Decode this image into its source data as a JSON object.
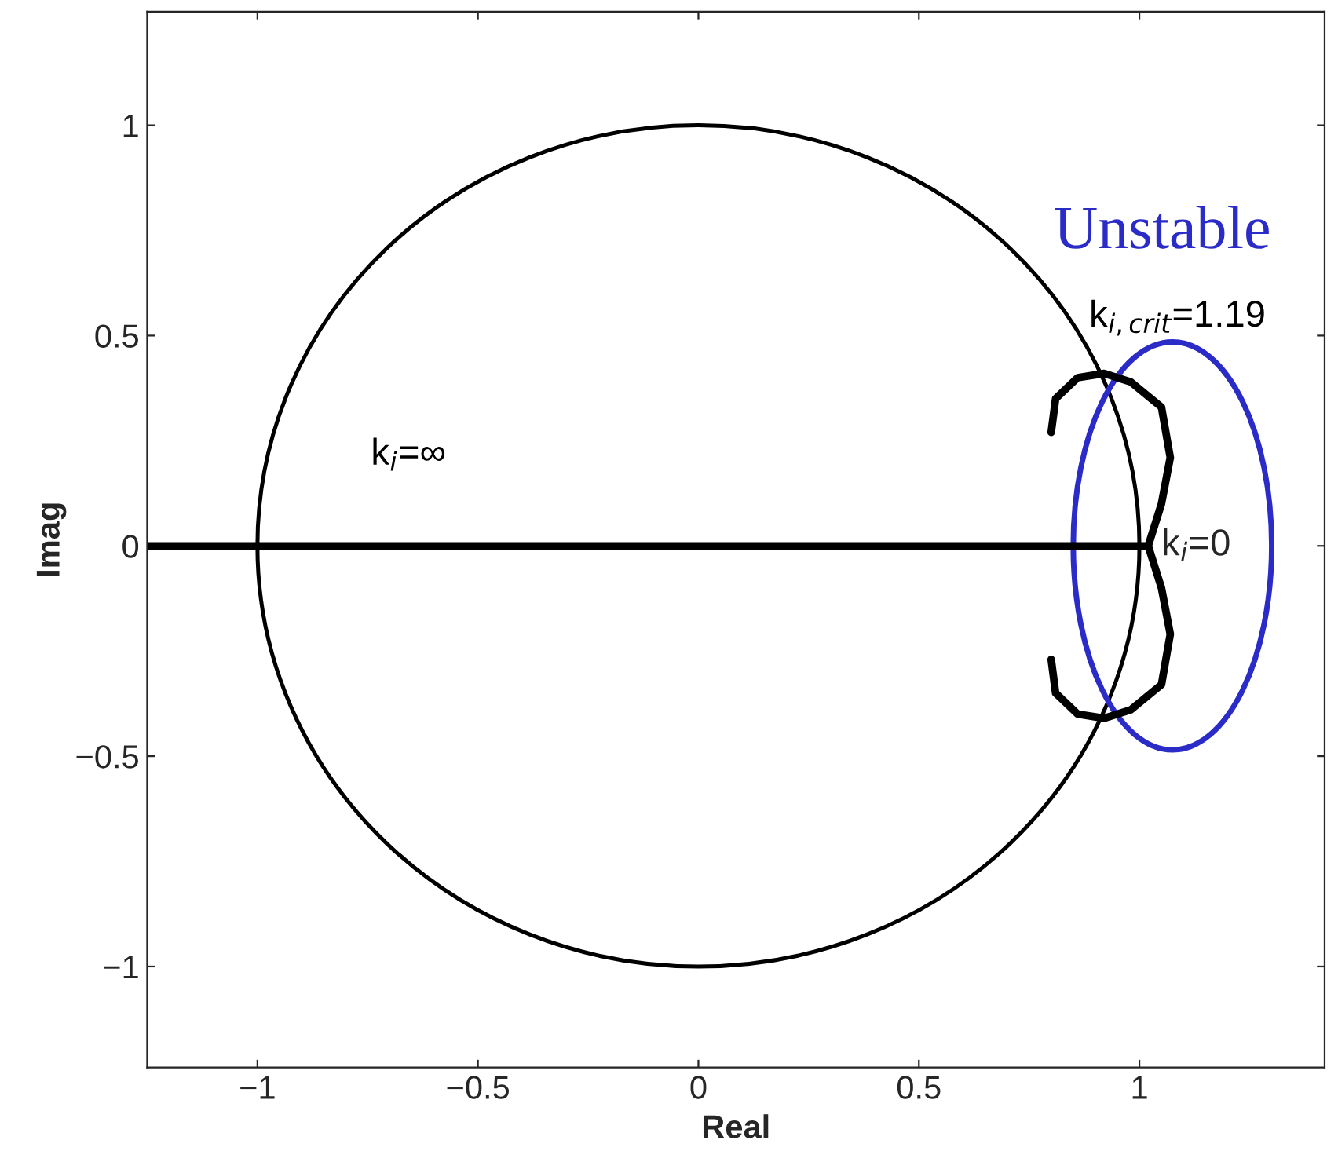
{
  "chart_data": {
    "type": "line",
    "xlabel": "Real",
    "ylabel": "Imag",
    "xlim": [
      -1.25,
      1.42
    ],
    "ylim": [
      -1.24,
      1.27
    ],
    "xticks": [
      {
        "value": -1,
        "label": "−1"
      },
      {
        "value": -0.5,
        "label": "−0.5"
      },
      0,
      0.5,
      1
    ],
    "yticks": [
      {
        "value": -1,
        "label": "−1"
      },
      {
        "value": -0.5,
        "label": "−0.5"
      },
      0,
      0.5,
      1
    ],
    "grid": false,
    "legend": false,
    "line_style": "solid",
    "marker": "none",
    "series": [
      {
        "color": "#000000",
        "x": [
          -1.25,
          1.02
        ],
        "values": [
          0,
          0
        ]
      },
      {
        "color": "#000000",
        "x": [
          1.02,
          1.05,
          1.07,
          1.05,
          0.98,
          0.92,
          0.86,
          0.81,
          0.8
        ],
        "values": [
          0,
          0.1,
          0.21,
          0.33,
          0.39,
          0.41,
          0.4,
          0.35,
          0.27
        ]
      },
      {
        "color": "#000000",
        "x": [
          1.02,
          1.05,
          1.07,
          1.05,
          0.98,
          0.92,
          0.86,
          0.81,
          0.8
        ],
        "values": [
          0,
          -0.1,
          -0.21,
          -0.33,
          -0.39,
          -0.41,
          -0.4,
          -0.35,
          -0.27
        ]
      }
    ],
    "annotations": [
      "Unstable",
      "k$_{i,crit}$=1.19",
      "k$_{i}$=∞",
      {
        "text": "k$_{i}$=0",
        "x": 1.02,
        "y": 0
      }
    ]
  }
}
